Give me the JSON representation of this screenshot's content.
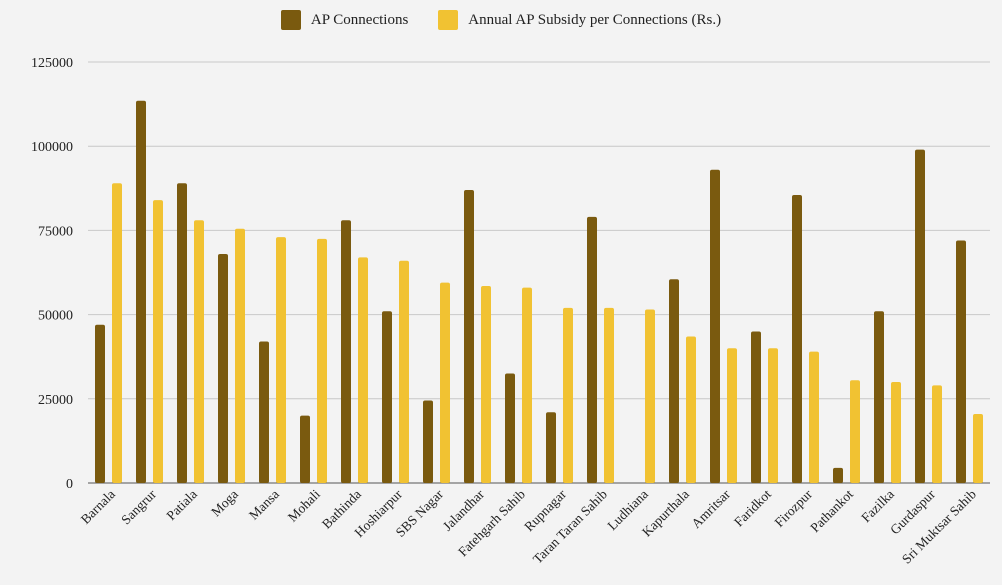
{
  "chart_data": {
    "type": "bar",
    "title": "",
    "xlabel": "",
    "ylabel": "",
    "ylim": [
      0,
      125000
    ],
    "yticks": [
      0,
      25000,
      50000,
      75000,
      100000,
      125000
    ],
    "grid": true,
    "legend_position": "top-center",
    "categories": [
      "Barnala",
      "Sangrur",
      "Patiala",
      "Moga",
      "Mansa",
      "Mohali",
      "Bathinda",
      "Hoshiarpur",
      "SBS Nagar",
      "Jalandhar",
      "Fatehgarh Sahib",
      "Rupnagar",
      "Taran Taran Sahib",
      "Ludhiana",
      "Kapurthala",
      "Amritsar",
      "Faridkot",
      "Firozpur",
      "Pathankot",
      "Fazilka",
      "Gurdaspur",
      "Sri Muktsar Sahib"
    ],
    "series": [
      {
        "name": "AP Connections",
        "color": "#7a5a0f",
        "values": [
          47000,
          113500,
          89000,
          68000,
          42000,
          20000,
          78000,
          51000,
          24500,
          87000,
          32500,
          21000,
          79000,
          0,
          60500,
          93000,
          45000,
          85500,
          4500,
          51000,
          99000,
          72000
        ]
      },
      {
        "name": "Annual AP Subsidy per Connections (Rs.)",
        "color": "#f1c232",
        "values": [
          89000,
          84000,
          78000,
          75500,
          73000,
          72500,
          67000,
          66000,
          59500,
          58500,
          58000,
          52000,
          52000,
          51500,
          43500,
          40000,
          40000,
          39000,
          30500,
          30000,
          29000,
          20500
        ]
      }
    ]
  }
}
